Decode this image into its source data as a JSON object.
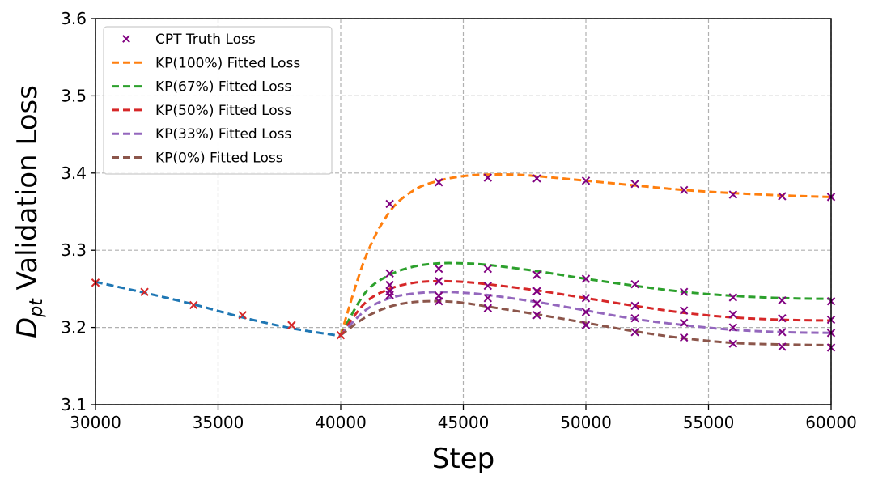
{
  "chart_data": {
    "type": "line",
    "title": "",
    "xlabel": "Step",
    "ylabel_main": "D",
    "ylabel_sub": "pt",
    "ylabel_rest": " Validation Loss",
    "xlim": [
      30000,
      60000
    ],
    "ylim": [
      3.1,
      3.6
    ],
    "xticks": [
      30000,
      35000,
      40000,
      45000,
      50000,
      55000,
      60000
    ],
    "yticks": [
      3.1,
      3.2,
      3.3,
      3.4,
      3.5,
      3.6
    ],
    "grid": true,
    "legend_position": "top-left",
    "colors": {
      "pretrain": "#1f77b4",
      "pretrain_points": "#d62728",
      "truth": "#800080",
      "kp100": "#ff7f0e",
      "kp67": "#2ca02c",
      "kp50": "#d62728",
      "kp33": "#9467bd",
      "kp0": "#8c564b"
    },
    "legend": [
      {
        "label": "CPT Truth Loss",
        "kind": "marker",
        "color_key": "truth"
      },
      {
        "label": "KP(100%) Fitted Loss",
        "kind": "line",
        "color_key": "kp100"
      },
      {
        "label": "KP(67%) Fitted Loss",
        "kind": "line",
        "color_key": "kp67"
      },
      {
        "label": "KP(50%) Fitted Loss",
        "kind": "line",
        "color_key": "kp50"
      },
      {
        "label": "KP(33%) Fitted Loss",
        "kind": "line",
        "color_key": "kp33"
      },
      {
        "label": "KP(0%) Fitted Loss",
        "kind": "line",
        "color_key": "kp0"
      }
    ],
    "pretrain_fit": {
      "x": [
        30000,
        32000,
        34000,
        36000,
        38000,
        40000
      ],
      "y": [
        3.259,
        3.245,
        3.23,
        3.213,
        3.199,
        3.189
      ]
    },
    "pretrain_points": {
      "x": [
        30000,
        32000,
        34000,
        36000,
        38000,
        40000
      ],
      "y": [
        3.258,
        3.246,
        3.229,
        3.216,
        3.203,
        3.19
      ]
    },
    "series": [
      {
        "name": "KP(100%) Fitted Loss",
        "color_key": "kp100",
        "fit_x": [
          40000,
          41000,
          42000,
          43000,
          44000,
          45000,
          46000,
          47000,
          48000,
          50000,
          52000,
          54000,
          56000,
          58000,
          60000
        ],
        "fit_y": [
          3.19,
          3.29,
          3.35,
          3.378,
          3.39,
          3.396,
          3.398,
          3.398,
          3.396,
          3.39,
          3.384,
          3.378,
          3.374,
          3.371,
          3.369
        ],
        "truth_x": [
          42000,
          44000,
          46000,
          48000,
          50000,
          52000,
          54000,
          56000,
          58000,
          60000
        ],
        "truth_y": [
          3.36,
          3.388,
          3.394,
          3.393,
          3.39,
          3.386,
          3.378,
          3.372,
          3.37,
          3.369
        ]
      },
      {
        "name": "KP(67%) Fitted Loss",
        "color_key": "kp67",
        "fit_x": [
          40000,
          41000,
          42000,
          43000,
          44000,
          45000,
          46000,
          48000,
          50000,
          52000,
          54000,
          56000,
          58000,
          60000
        ],
        "fit_y": [
          3.19,
          3.245,
          3.268,
          3.279,
          3.283,
          3.283,
          3.281,
          3.273,
          3.263,
          3.254,
          3.246,
          3.241,
          3.238,
          3.237
        ],
        "truth_x": [
          42000,
          44000,
          46000,
          48000,
          50000,
          52000,
          54000,
          56000,
          58000,
          60000
        ],
        "truth_y": [
          3.27,
          3.276,
          3.276,
          3.268,
          3.263,
          3.256,
          3.246,
          3.239,
          3.235,
          3.234
        ]
      },
      {
        "name": "KP(50%) Fitted Loss",
        "color_key": "kp50",
        "fit_x": [
          40000,
          41000,
          42000,
          43000,
          44000,
          45000,
          46000,
          48000,
          50000,
          52000,
          54000,
          56000,
          58000,
          60000
        ],
        "fit_y": [
          3.19,
          3.232,
          3.25,
          3.258,
          3.26,
          3.259,
          3.256,
          3.248,
          3.238,
          3.228,
          3.219,
          3.213,
          3.21,
          3.209
        ],
        "truth_x": [
          42000,
          44000,
          46000,
          48000,
          50000,
          52000,
          54000,
          56000,
          58000,
          60000
        ],
        "truth_y": [
          3.255,
          3.26,
          3.254,
          3.247,
          3.238,
          3.228,
          3.222,
          3.217,
          3.212,
          3.21
        ]
      },
      {
        "name": "KP(33%) Fitted Loss",
        "color_key": "kp33",
        "fit_x": [
          40000,
          41000,
          42000,
          43000,
          44000,
          45000,
          46000,
          48000,
          50000,
          52000,
          54000,
          56000,
          58000,
          60000
        ],
        "fit_y": [
          3.19,
          3.222,
          3.238,
          3.244,
          3.246,
          3.245,
          3.242,
          3.233,
          3.222,
          3.211,
          3.203,
          3.197,
          3.194,
          3.193
        ],
        "truth_x": [
          42000,
          44000,
          46000,
          48000,
          50000,
          52000,
          54000,
          56000,
          58000,
          60000
        ],
        "truth_y": [
          3.247,
          3.241,
          3.238,
          3.231,
          3.22,
          3.212,
          3.206,
          3.2,
          3.194,
          3.193
        ]
      },
      {
        "name": "KP(0%) Fitted Loss",
        "color_key": "kp0",
        "fit_x": [
          40000,
          41000,
          42000,
          43000,
          44000,
          45000,
          46000,
          48000,
          50000,
          52000,
          54000,
          56000,
          58000,
          60000
        ],
        "fit_y": [
          3.19,
          3.213,
          3.227,
          3.233,
          3.234,
          3.232,
          3.227,
          3.217,
          3.206,
          3.195,
          3.186,
          3.18,
          3.178,
          3.177
        ],
        "truth_x": [
          42000,
          44000,
          46000,
          48000,
          50000,
          52000,
          54000,
          56000,
          58000,
          60000
        ],
        "truth_y": [
          3.242,
          3.234,
          3.225,
          3.216,
          3.203,
          3.194,
          3.187,
          3.179,
          3.175,
          3.174
        ]
      }
    ]
  }
}
